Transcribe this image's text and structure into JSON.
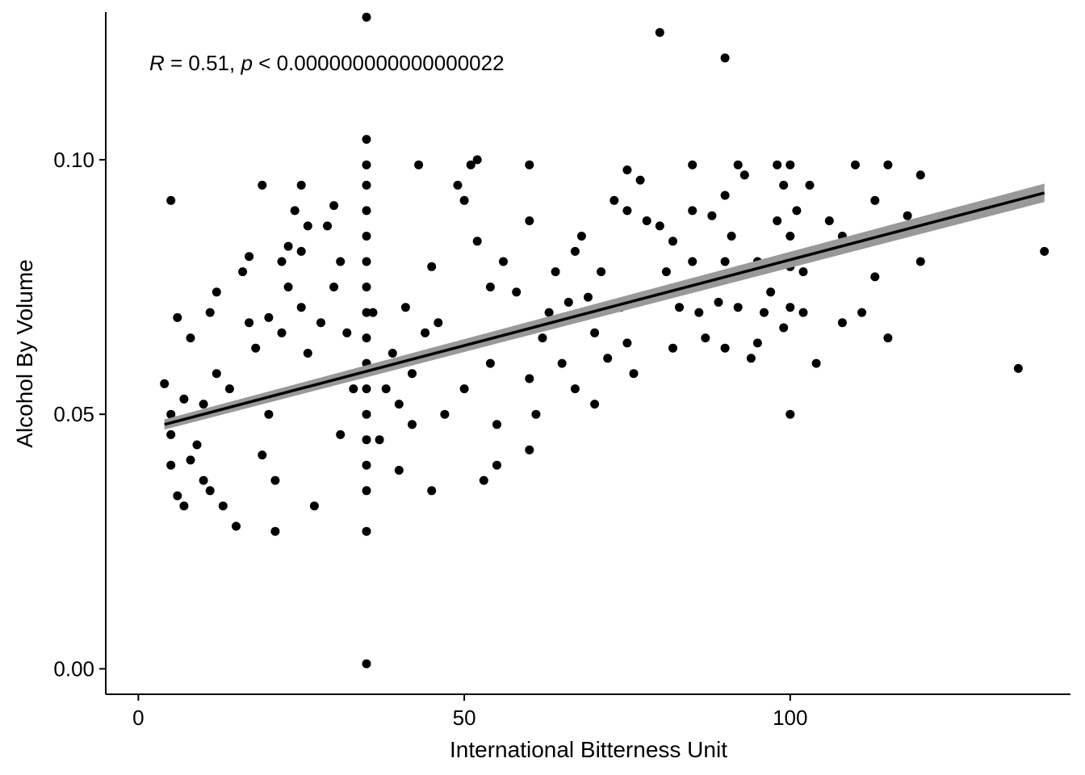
{
  "chart_data": {
    "type": "scatter",
    "title": "",
    "xlabel": "International Bitterness Unit",
    "ylabel": "Alcohol By Volume",
    "xlim": [
      -5,
      143
    ],
    "ylim": [
      -0.005,
      0.129
    ],
    "xticks": [
      0,
      50,
      100
    ],
    "xtick_labels": [
      "0",
      "50",
      "100"
    ],
    "yticks": [
      0.0,
      0.05,
      0.1
    ],
    "ytick_labels": [
      "0.00",
      "0.05",
      "0.10"
    ],
    "grid": false,
    "legend": "none",
    "annotation": {
      "r_symbol": "R",
      "r_value_text": " = 0.51, ",
      "p_symbol": "p",
      "p_value_text": " < 0.000000000000000022"
    },
    "regression": {
      "x": [
        4,
        139
      ],
      "y": [
        0.048,
        0.0935
      ],
      "ci_halfwidth": [
        0.001,
        0.0018
      ]
    },
    "points": [
      [
        4,
        0.056
      ],
      [
        5,
        0.092
      ],
      [
        5,
        0.05
      ],
      [
        5,
        0.046
      ],
      [
        5,
        0.04
      ],
      [
        6,
        0.069
      ],
      [
        6,
        0.034
      ],
      [
        7,
        0.053
      ],
      [
        7,
        0.032
      ],
      [
        8,
        0.065
      ],
      [
        8,
        0.041
      ],
      [
        9,
        0.044
      ],
      [
        10,
        0.052
      ],
      [
        10,
        0.037
      ],
      [
        11,
        0.07
      ],
      [
        11,
        0.035
      ],
      [
        12,
        0.074
      ],
      [
        12,
        0.058
      ],
      [
        13,
        0.032
      ],
      [
        14,
        0.055
      ],
      [
        15,
        0.028
      ],
      [
        16,
        0.078
      ],
      [
        17,
        0.081
      ],
      [
        17,
        0.068
      ],
      [
        18,
        0.063
      ],
      [
        19,
        0.095
      ],
      [
        19,
        0.042
      ],
      [
        20,
        0.069
      ],
      [
        20,
        0.05
      ],
      [
        21,
        0.027
      ],
      [
        21,
        0.037
      ],
      [
        22,
        0.08
      ],
      [
        22,
        0.066
      ],
      [
        23,
        0.083
      ],
      [
        23,
        0.075
      ],
      [
        24,
        0.09
      ],
      [
        25,
        0.095
      ],
      [
        25,
        0.082
      ],
      [
        25,
        0.071
      ],
      [
        26,
        0.087
      ],
      [
        26,
        0.062
      ],
      [
        27,
        0.032
      ],
      [
        28,
        0.068
      ],
      [
        29,
        0.087
      ],
      [
        30,
        0.091
      ],
      [
        30,
        0.075
      ],
      [
        31,
        0.08
      ],
      [
        31,
        0.046
      ],
      [
        32,
        0.066
      ],
      [
        33,
        0.055
      ],
      [
        35,
        0.128
      ],
      [
        35,
        0.104
      ],
      [
        35,
        0.099
      ],
      [
        35,
        0.095
      ],
      [
        35,
        0.09
      ],
      [
        35,
        0.085
      ],
      [
        35,
        0.08
      ],
      [
        35,
        0.075
      ],
      [
        35,
        0.07
      ],
      [
        35,
        0.065
      ],
      [
        35,
        0.06
      ],
      [
        35,
        0.055
      ],
      [
        35,
        0.05
      ],
      [
        35,
        0.045
      ],
      [
        35,
        0.04
      ],
      [
        35,
        0.035
      ],
      [
        35,
        0.027
      ],
      [
        35,
        0.001
      ],
      [
        36,
        0.07
      ],
      [
        37,
        0.045
      ],
      [
        38,
        0.055
      ],
      [
        39,
        0.062
      ],
      [
        40,
        0.052
      ],
      [
        40,
        0.039
      ],
      [
        41,
        0.071
      ],
      [
        42,
        0.058
      ],
      [
        42,
        0.048
      ],
      [
        43,
        0.099
      ],
      [
        44,
        0.066
      ],
      [
        45,
        0.079
      ],
      [
        45,
        0.035
      ],
      [
        46,
        0.068
      ],
      [
        47,
        0.05
      ],
      [
        49,
        0.095
      ],
      [
        50,
        0.092
      ],
      [
        50,
        0.055
      ],
      [
        51,
        0.099
      ],
      [
        52,
        0.1
      ],
      [
        52,
        0.084
      ],
      [
        53,
        0.037
      ],
      [
        54,
        0.075
      ],
      [
        54,
        0.06
      ],
      [
        55,
        0.04
      ],
      [
        55,
        0.048
      ],
      [
        56,
        0.08
      ],
      [
        58,
        0.074
      ],
      [
        60,
        0.099
      ],
      [
        60,
        0.088
      ],
      [
        60,
        0.057
      ],
      [
        60,
        0.043
      ],
      [
        61,
        0.05
      ],
      [
        62,
        0.065
      ],
      [
        63,
        0.07
      ],
      [
        64,
        0.078
      ],
      [
        65,
        0.06
      ],
      [
        66,
        0.072
      ],
      [
        67,
        0.082
      ],
      [
        67,
        0.055
      ],
      [
        68,
        0.085
      ],
      [
        69,
        0.073
      ],
      [
        70,
        0.066
      ],
      [
        70,
        0.052
      ],
      [
        71,
        0.078
      ],
      [
        72,
        0.061
      ],
      [
        73,
        0.092
      ],
      [
        74,
        0.071
      ],
      [
        75,
        0.098
      ],
      [
        75,
        0.09
      ],
      [
        75,
        0.064
      ],
      [
        76,
        0.058
      ],
      [
        77,
        0.096
      ],
      [
        78,
        0.088
      ],
      [
        79,
        0.073
      ],
      [
        80,
        0.125
      ],
      [
        80,
        0.087
      ],
      [
        81,
        0.078
      ],
      [
        82,
        0.084
      ],
      [
        82,
        0.063
      ],
      [
        83,
        0.071
      ],
      [
        85,
        0.099
      ],
      [
        85,
        0.09
      ],
      [
        85,
        0.08
      ],
      [
        85,
        0.075
      ],
      [
        86,
        0.07
      ],
      [
        87,
        0.065
      ],
      [
        88,
        0.089
      ],
      [
        89,
        0.072
      ],
      [
        90,
        0.12
      ],
      [
        90,
        0.093
      ],
      [
        90,
        0.08
      ],
      [
        90,
        0.063
      ],
      [
        91,
        0.085
      ],
      [
        92,
        0.099
      ],
      [
        92,
        0.071
      ],
      [
        93,
        0.097
      ],
      [
        94,
        0.061
      ],
      [
        95,
        0.08
      ],
      [
        95,
        0.064
      ],
      [
        96,
        0.07
      ],
      [
        97,
        0.074
      ],
      [
        98,
        0.099
      ],
      [
        98,
        0.088
      ],
      [
        99,
        0.095
      ],
      [
        99,
        0.067
      ],
      [
        100,
        0.099
      ],
      [
        100,
        0.085
      ],
      [
        100,
        0.079
      ],
      [
        100,
        0.071
      ],
      [
        100,
        0.05
      ],
      [
        101,
        0.09
      ],
      [
        102,
        0.078
      ],
      [
        102,
        0.07
      ],
      [
        103,
        0.095
      ],
      [
        104,
        0.082
      ],
      [
        104,
        0.06
      ],
      [
        106,
        0.088
      ],
      [
        108,
        0.085
      ],
      [
        108,
        0.068
      ],
      [
        110,
        0.099
      ],
      [
        111,
        0.07
      ],
      [
        113,
        0.092
      ],
      [
        113,
        0.077
      ],
      [
        115,
        0.099
      ],
      [
        115,
        0.085
      ],
      [
        115,
        0.065
      ],
      [
        118,
        0.089
      ],
      [
        120,
        0.097
      ],
      [
        120,
        0.08
      ],
      [
        125,
        0.089
      ],
      [
        130,
        0.09
      ],
      [
        135,
        0.059
      ],
      [
        139,
        0.082
      ]
    ]
  }
}
